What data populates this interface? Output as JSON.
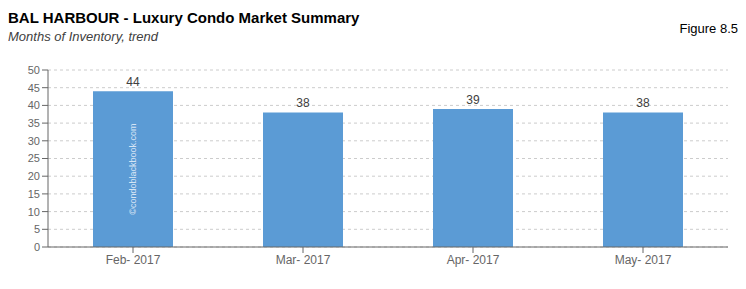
{
  "chart_data": {
    "type": "bar",
    "title": "BAL HARBOUR - Luxury Condo Market Summary",
    "subtitle": "Months of Inventory, trend",
    "annotations": [
      "Figure 8.5",
      "©condoblackbook.com"
    ],
    "categories": [
      "Feb- 2017",
      "Mar- 2017",
      "Apr- 2017",
      "May- 2017"
    ],
    "values": [
      44,
      38,
      39,
      38
    ],
    "color": "#5B9BD5",
    "ylim": [
      0,
      50
    ],
    "yticks": [
      0,
      5,
      10,
      15,
      20,
      25,
      30,
      35,
      40,
      45,
      50
    ],
    "grid": true,
    "data_labels": true
  }
}
